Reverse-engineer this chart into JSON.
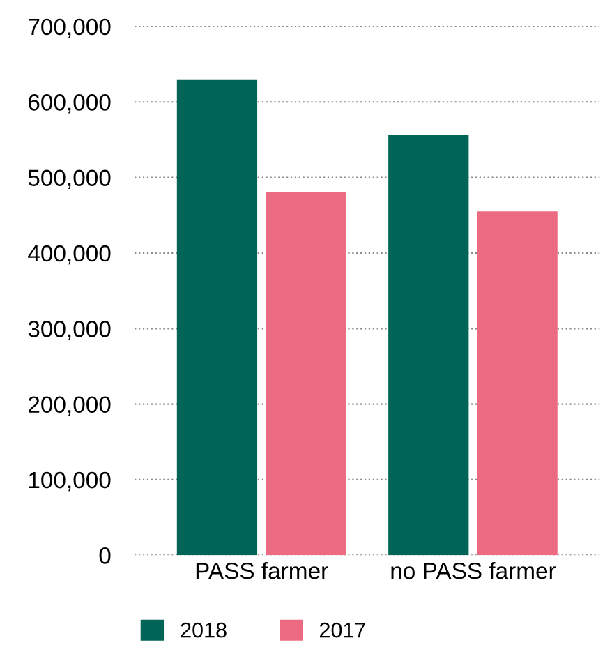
{
  "chart_data": {
    "type": "bar",
    "categories": [
      "PASS farmer",
      "no PASS farmer"
    ],
    "series": [
      {
        "name": "2018",
        "color": "#006457",
        "values": [
          629000,
          556000
        ]
      },
      {
        "name": "2017",
        "color": "#ec6b82",
        "values": [
          481000,
          455000
        ]
      }
    ],
    "ylim": [
      0,
      700000
    ],
    "yticks": [
      {
        "value": 0,
        "label": "0"
      },
      {
        "value": 100000,
        "label": "100,000"
      },
      {
        "value": 200000,
        "label": "200,000"
      },
      {
        "value": 300000,
        "label": "300,000"
      },
      {
        "value": 400000,
        "label": "400,000"
      },
      {
        "value": 500000,
        "label": "500,000"
      },
      {
        "value": 600000,
        "label": "600,000"
      },
      {
        "value": 700000,
        "label": "700,000"
      }
    ],
    "grid": "y",
    "legend": "bottom left"
  }
}
